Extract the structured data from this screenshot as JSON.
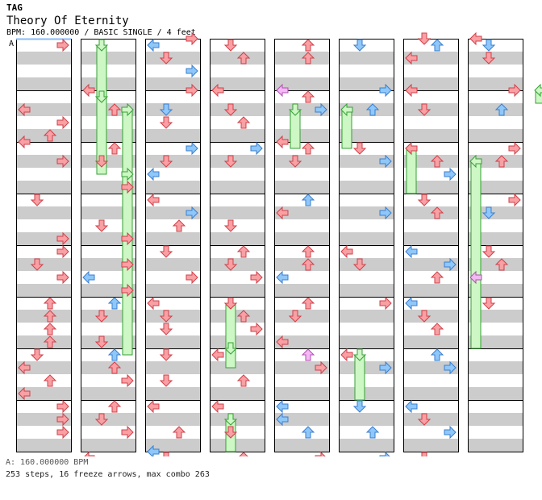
{
  "tag_label": "TAG",
  "song_title": "Theory Of Eternity",
  "chart_info": "BPM: 160.000000 / BASIC SINGLE / 4 feet",
  "bpm_marker": "A",
  "bpm_legend": "A: 160.000000 BPM",
  "stats_line": "253 steps, 16 freeze arrows, max combo 263",
  "colors": {
    "red_arrow": "#f8a0a4",
    "red_outline": "#d0404a",
    "blue_arrow": "#8fc8f8",
    "blue_outline": "#3a7ed0",
    "freeze_fill": "#cdf7c4",
    "freeze_outline": "#35a035",
    "pink_arrow": "#f4b8f4",
    "stripe": "#cccccc"
  },
  "chart_data": {
    "type": "step-chart",
    "columns": 8,
    "measures_per_column": 8,
    "lanes": [
      "left",
      "down",
      "up",
      "right"
    ],
    "notes": [
      [
        [
          0,
          1,
          3,
          "r"
        ],
        [
          1,
          3,
          0,
          "r"
        ],
        [
          1,
          5,
          3,
          "r"
        ],
        [
          1,
          7,
          2,
          "r"
        ],
        [
          2,
          0,
          0,
          "r"
        ],
        [
          2,
          3,
          3,
          "r"
        ],
        [
          3,
          1,
          1,
          "r"
        ],
        [
          3,
          7,
          3,
          "r"
        ],
        [
          4,
          1,
          3,
          "r"
        ],
        [
          4,
          3,
          1,
          "r"
        ],
        [
          4,
          5,
          3,
          "r"
        ],
        [
          5,
          1,
          2,
          "r"
        ],
        [
          5,
          3,
          2,
          "r"
        ],
        [
          5,
          5,
          2,
          "r"
        ],
        [
          5,
          7,
          2,
          "r"
        ],
        [
          6,
          1,
          1,
          "r"
        ],
        [
          6,
          3,
          0,
          "r"
        ],
        [
          6,
          5,
          2,
          "r"
        ],
        [
          6,
          7,
          0,
          "r"
        ],
        [
          7,
          1,
          3,
          "r"
        ],
        [
          7,
          3,
          3,
          "r"
        ],
        [
          7,
          5,
          3,
          "r"
        ],
        [
          8,
          3,
          2,
          "r"
        ],
        [
          8,
          7,
          3,
          "r"
        ],
        [
          9,
          0,
          0,
          "b"
        ]
      ],
      [
        [
          1,
          0,
          0,
          "r"
        ],
        [
          1,
          3,
          2,
          "r"
        ],
        [
          2,
          1,
          2,
          "r"
        ],
        [
          2,
          3,
          1,
          "r"
        ],
        [
          2,
          7,
          3,
          "r"
        ],
        [
          3,
          5,
          1,
          "r"
        ],
        [
          3,
          7,
          3,
          "r"
        ],
        [
          4,
          3,
          3,
          "r"
        ],
        [
          4,
          5,
          0,
          "b"
        ],
        [
          4,
          7,
          3,
          "r"
        ],
        [
          5,
          1,
          2,
          "b"
        ],
        [
          5,
          3,
          1,
          "r"
        ],
        [
          5,
          7,
          1,
          "r"
        ],
        [
          6,
          1,
          2,
          "b"
        ],
        [
          6,
          3,
          2,
          "r"
        ],
        [
          6,
          5,
          3,
          "r"
        ],
        [
          7,
          1,
          2,
          "r"
        ],
        [
          7,
          3,
          1,
          "r"
        ],
        [
          7,
          5,
          3,
          "r"
        ],
        [
          8,
          1,
          0,
          "r"
        ],
        [
          8,
          3,
          1,
          "r"
        ],
        [
          8,
          5,
          3,
          "r"
        ],
        [
          9,
          0,
          1,
          "p"
        ]
      ],
      [
        [
          0,
          0,
          3,
          "r"
        ],
        [
          0,
          1,
          0,
          "b"
        ],
        [
          0,
          3,
          1,
          "r"
        ],
        [
          0,
          5,
          3,
          "b"
        ],
        [
          1,
          0,
          3,
          "r"
        ],
        [
          1,
          3,
          1,
          "b"
        ],
        [
          1,
          5,
          1,
          "r"
        ],
        [
          2,
          1,
          3,
          "b"
        ],
        [
          2,
          3,
          1,
          "r"
        ],
        [
          2,
          5,
          0,
          "b"
        ],
        [
          3,
          1,
          0,
          "r"
        ],
        [
          3,
          3,
          3,
          "b"
        ],
        [
          3,
          5,
          2,
          "r"
        ],
        [
          4,
          1,
          1,
          "r"
        ],
        [
          4,
          5,
          3,
          "r"
        ],
        [
          5,
          1,
          0,
          "r"
        ],
        [
          5,
          3,
          1,
          "r"
        ],
        [
          5,
          5,
          1,
          "r"
        ],
        [
          6,
          1,
          1,
          "r"
        ],
        [
          6,
          5,
          1,
          "r"
        ],
        [
          7,
          1,
          0,
          "r"
        ],
        [
          7,
          5,
          2,
          "r"
        ],
        [
          8,
          0,
          0,
          "b"
        ],
        [
          8,
          1,
          1,
          "r"
        ],
        [
          8,
          3,
          1,
          "r"
        ],
        [
          8,
          5,
          3,
          "b"
        ],
        [
          8,
          7,
          1,
          "r"
        ]
      ],
      [
        [
          0,
          1,
          1,
          "r"
        ],
        [
          0,
          3,
          2,
          "r"
        ],
        [
          1,
          0,
          0,
          "r"
        ],
        [
          1,
          3,
          1,
          "r"
        ],
        [
          1,
          5,
          2,
          "r"
        ],
        [
          2,
          1,
          3,
          "b"
        ],
        [
          2,
          3,
          1,
          "r"
        ],
        [
          3,
          5,
          1,
          "r"
        ],
        [
          4,
          1,
          2,
          "r"
        ],
        [
          4,
          3,
          1,
          "r"
        ],
        [
          4,
          5,
          3,
          "r"
        ],
        [
          5,
          1,
          1,
          "r"
        ],
        [
          5,
          3,
          2,
          "r"
        ],
        [
          5,
          5,
          3,
          "r"
        ],
        [
          6,
          1,
          0,
          "r"
        ],
        [
          6,
          5,
          2,
          "r"
        ],
        [
          7,
          1,
          0,
          "r"
        ],
        [
          7,
          5,
          1,
          "r"
        ],
        [
          8,
          1,
          2,
          "r"
        ],
        [
          8,
          3,
          3,
          "b"
        ],
        [
          8,
          5,
          3,
          "r"
        ],
        [
          9,
          0,
          2,
          "g"
        ]
      ],
      [
        [
          0,
          1,
          2,
          "r"
        ],
        [
          0,
          3,
          2,
          "r"
        ],
        [
          1,
          0,
          0,
          "p"
        ],
        [
          1,
          1,
          2,
          "r"
        ],
        [
          1,
          3,
          3,
          "b"
        ],
        [
          2,
          0,
          0,
          "r"
        ],
        [
          2,
          1,
          2,
          "r"
        ],
        [
          2,
          3,
          1,
          "r"
        ],
        [
          3,
          1,
          2,
          "b"
        ],
        [
          3,
          3,
          0,
          "r"
        ],
        [
          4,
          1,
          2,
          "r"
        ],
        [
          4,
          3,
          2,
          "r"
        ],
        [
          4,
          5,
          0,
          "b"
        ],
        [
          5,
          1,
          2,
          "r"
        ],
        [
          5,
          3,
          1,
          "r"
        ],
        [
          5,
          7,
          0,
          "r"
        ],
        [
          6,
          1,
          2,
          "p"
        ],
        [
          6,
          3,
          3,
          "r"
        ],
        [
          7,
          1,
          0,
          "b"
        ],
        [
          7,
          3,
          0,
          "b"
        ],
        [
          7,
          5,
          2,
          "b"
        ],
        [
          8,
          1,
          3,
          "r"
        ],
        [
          8,
          3,
          1,
          "r"
        ],
        [
          8,
          5,
          2,
          "r"
        ],
        [
          8,
          7,
          0,
          "r"
        ],
        [
          9,
          0,
          3,
          "b"
        ]
      ],
      [
        [
          0,
          1,
          1,
          "b"
        ],
        [
          1,
          0,
          3,
          "b"
        ],
        [
          1,
          3,
          2,
          "b"
        ],
        [
          2,
          1,
          1,
          "r"
        ],
        [
          2,
          3,
          3,
          "b"
        ],
        [
          3,
          3,
          3,
          "b"
        ],
        [
          4,
          1,
          0,
          "r"
        ],
        [
          4,
          3,
          1,
          "r"
        ],
        [
          5,
          1,
          3,
          "r"
        ],
        [
          6,
          1,
          0,
          "r"
        ],
        [
          6,
          3,
          3,
          "b"
        ],
        [
          7,
          1,
          1,
          "b"
        ],
        [
          7,
          5,
          2,
          "b"
        ],
        [
          8,
          1,
          3,
          "b"
        ],
        [
          8,
          3,
          0,
          "r"
        ],
        [
          8,
          5,
          1,
          "r"
        ],
        [
          9,
          0,
          2,
          "r"
        ]
      ],
      [
        [
          0,
          0,
          1,
          "r"
        ],
        [
          0,
          1,
          2,
          "b"
        ],
        [
          0,
          3,
          0,
          "r"
        ],
        [
          1,
          0,
          0,
          "r"
        ],
        [
          1,
          3,
          1,
          "r"
        ],
        [
          2,
          1,
          0,
          "r"
        ],
        [
          2,
          3,
          2,
          "r"
        ],
        [
          2,
          5,
          3,
          "b"
        ],
        [
          3,
          1,
          1,
          "r"
        ],
        [
          3,
          3,
          2,
          "r"
        ],
        [
          4,
          1,
          0,
          "b"
        ],
        [
          4,
          3,
          3,
          "b"
        ],
        [
          4,
          5,
          2,
          "r"
        ],
        [
          5,
          1,
          0,
          "b"
        ],
        [
          5,
          3,
          1,
          "r"
        ],
        [
          5,
          5,
          2,
          "r"
        ],
        [
          6,
          1,
          2,
          "b"
        ],
        [
          6,
          3,
          3,
          "b"
        ],
        [
          7,
          1,
          0,
          "b"
        ],
        [
          7,
          3,
          1,
          "r"
        ],
        [
          7,
          5,
          3,
          "b"
        ],
        [
          8,
          1,
          1,
          "r"
        ],
        [
          8,
          3,
          0,
          "r"
        ],
        [
          8,
          5,
          1,
          "b"
        ],
        [
          8,
          7,
          2,
          "b"
        ],
        [
          9,
          0,
          3,
          "b"
        ]
      ],
      [
        [
          0,
          0,
          0,
          "r"
        ],
        [
          0,
          1,
          1,
          "b"
        ],
        [
          0,
          3,
          1,
          "r"
        ],
        [
          1,
          0,
          3,
          "r"
        ],
        [
          1,
          3,
          2,
          "b"
        ],
        [
          2,
          1,
          3,
          "r"
        ],
        [
          2,
          3,
          2,
          "r"
        ],
        [
          3,
          1,
          3,
          "r"
        ],
        [
          3,
          3,
          1,
          "b"
        ],
        [
          4,
          1,
          1,
          "r"
        ],
        [
          4,
          3,
          2,
          "r"
        ],
        [
          4,
          5,
          0,
          "p"
        ],
        [
          5,
          1,
          1,
          "r"
        ]
      ]
    ],
    "freezes": [
      [
        [
          1,
          1,
          0,
          1,
          1,
          2
        ],
        [
          1,
          1,
          1,
          1,
          2,
          5
        ],
        [
          1,
          3,
          1,
          3,
          2,
          5
        ],
        [
          1,
          3,
          2,
          5,
          6,
          1
        ],
        [
          3,
          1,
          5,
          1,
          6,
          1
        ],
        [
          5,
          1,
          6,
          1,
          7,
          0
        ]
      ],
      [
        [
          6,
          0,
          2,
          1,
          3,
          0
        ],
        [
          7,
          0,
          2,
          3,
          6,
          0
        ],
        [
          9,
          0,
          4,
          1,
          4,
          5
        ],
        [
          8,
          0,
          1,
          0,
          1,
          2
        ]
      ],
      [
        [
          3,
          1,
          6,
          0,
          6,
          3
        ],
        [
          3,
          1,
          7,
          3,
          8,
          0
        ],
        [
          5,
          0,
          1,
          3,
          2,
          1
        ],
        [
          4,
          1,
          1,
          3,
          2,
          1
        ],
        [
          4,
          1,
          8,
          5,
          8,
          7
        ],
        [
          4,
          2,
          8,
          7,
          9,
          0
        ]
      ]
    ]
  }
}
